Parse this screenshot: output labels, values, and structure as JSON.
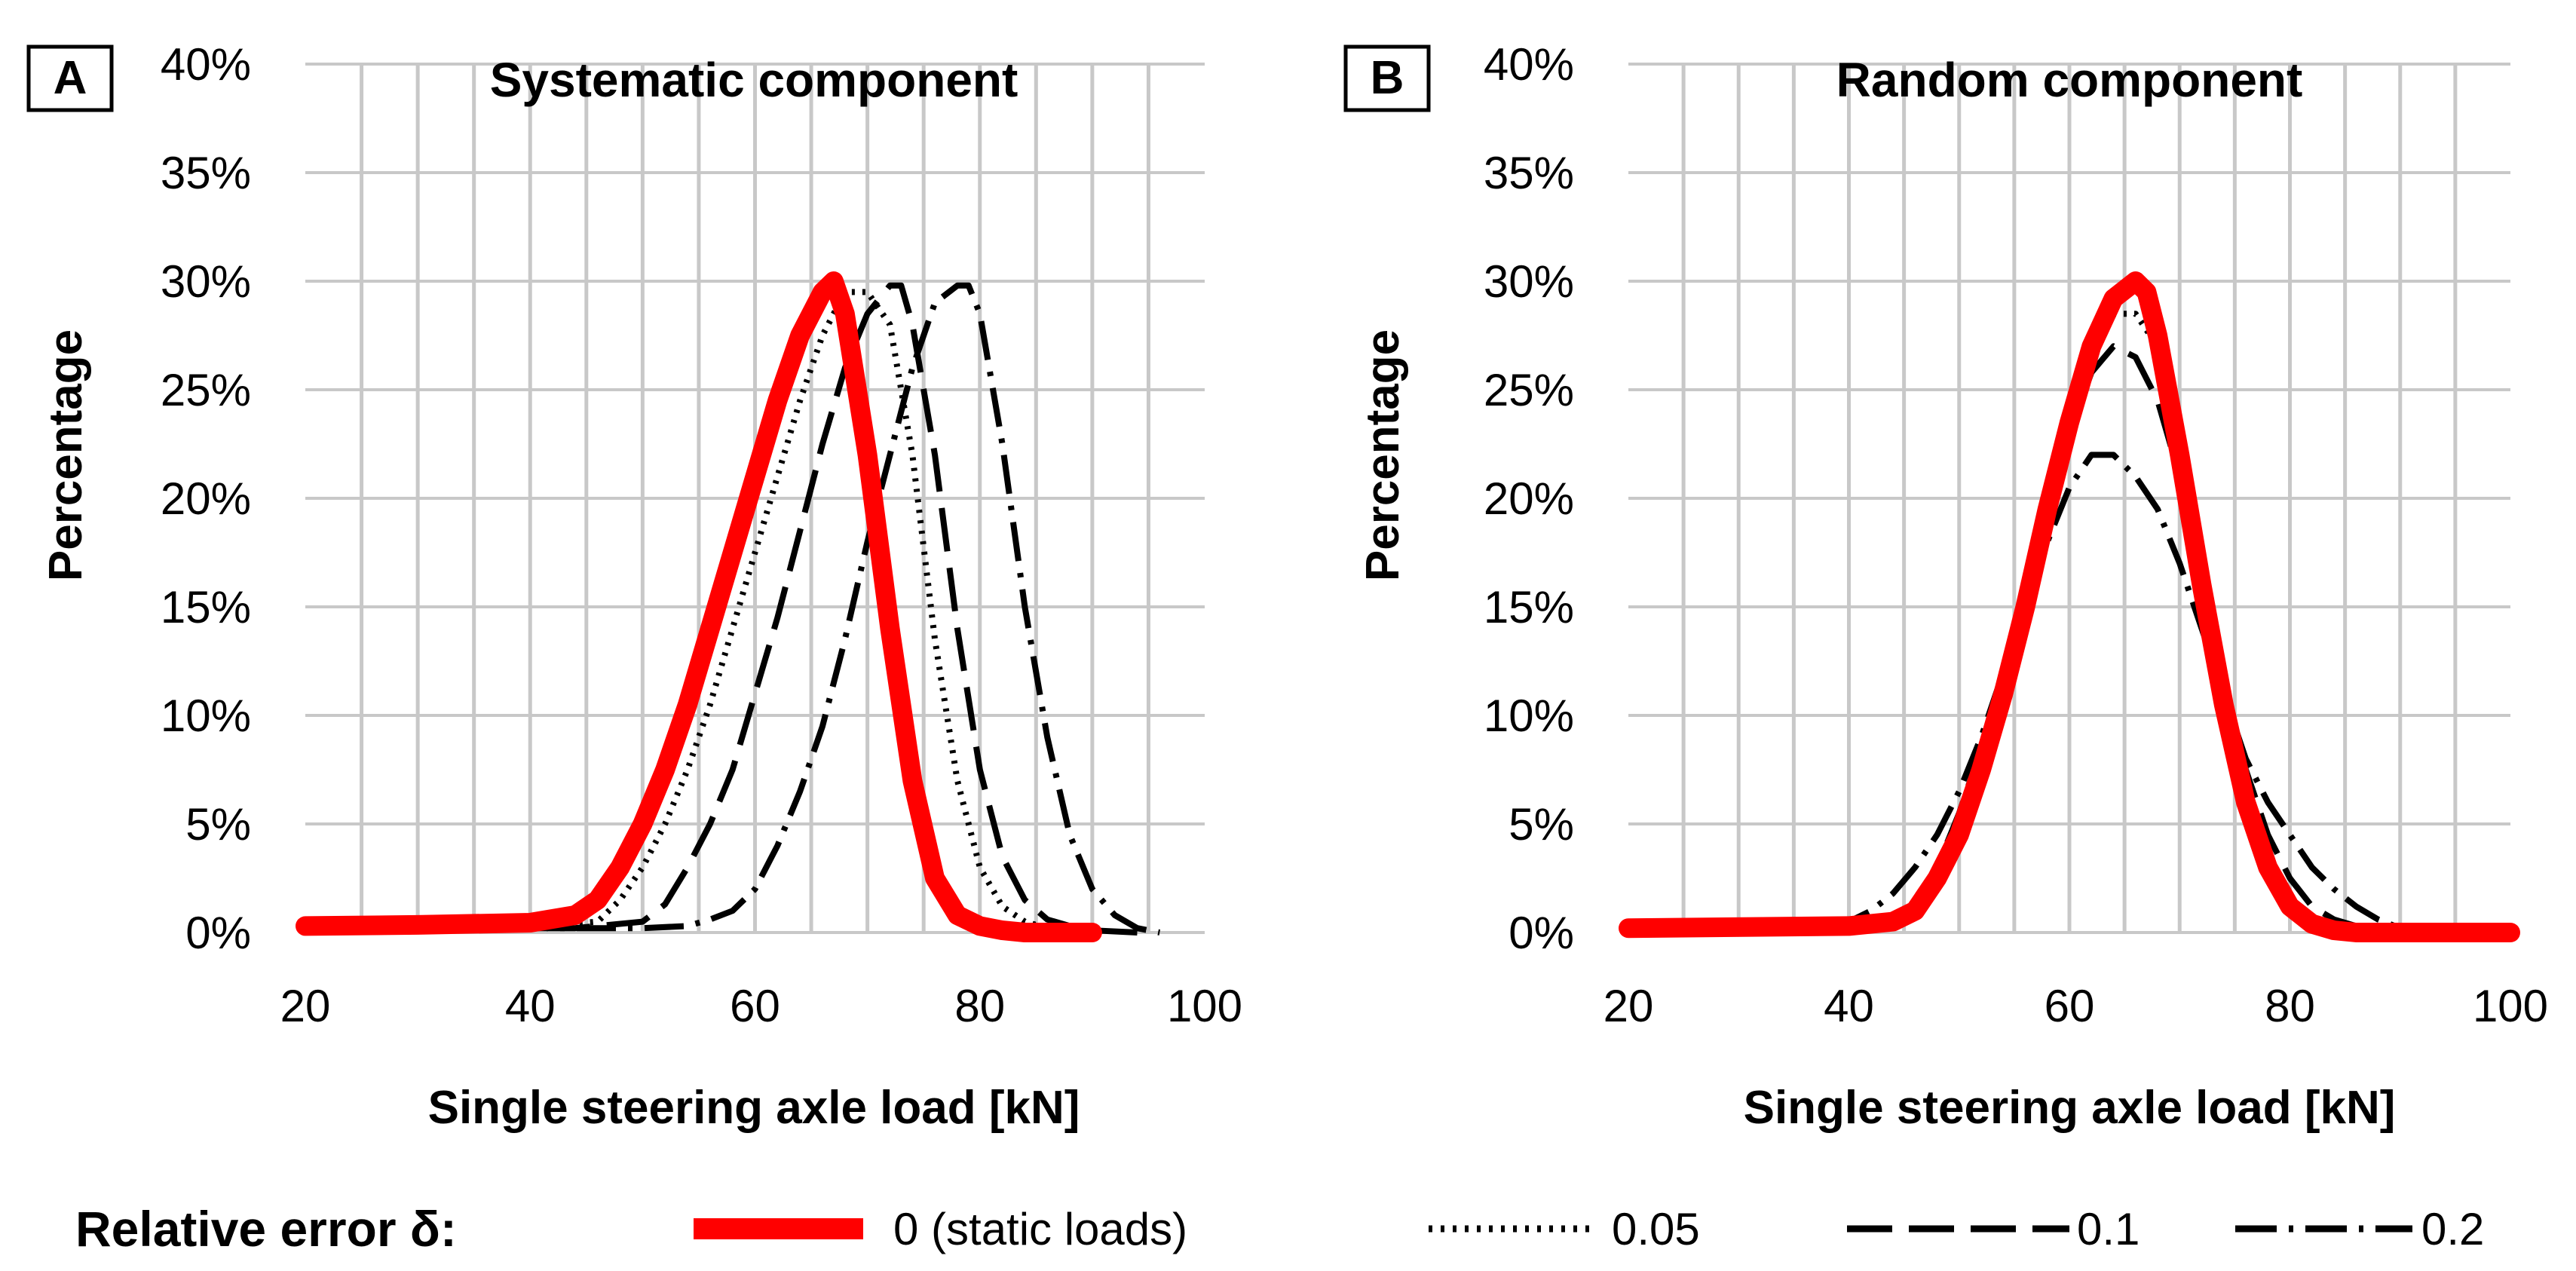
{
  "chart_data": [
    {
      "type": "line",
      "panel_label": "A",
      "title": "Systematic component",
      "xlabel": "Single steering axle load [kN]",
      "ylabel": "Percentage",
      "xlim": [
        20,
        100
      ],
      "ylim": [
        0,
        40
      ],
      "x_ticks": [
        20,
        40,
        60,
        80,
        100
      ],
      "x_tick_labels": [
        "20",
        "40",
        "60",
        "80",
        "100"
      ],
      "y_ticks": [
        0,
        5,
        10,
        15,
        20,
        25,
        30,
        35,
        40
      ],
      "y_tick_labels": [
        "0%",
        "5%",
        "10%",
        "15%",
        "20%",
        "25%",
        "30%",
        "35%",
        "40%"
      ],
      "grid": true,
      "series": [
        {
          "name": "0 (static loads)",
          "x": [
            20,
            30,
            40,
            44,
            46,
            48,
            50,
            52,
            54,
            56,
            58,
            60,
            62,
            64,
            66,
            67,
            68,
            70,
            72,
            74,
            76,
            78,
            80,
            82,
            84,
            86,
            88,
            90
          ],
          "y": [
            0.3,
            0.35,
            0.45,
            0.8,
            1.5,
            3,
            5,
            7.5,
            10.5,
            14,
            17.5,
            21,
            24.5,
            27.5,
            29.5,
            30,
            28.5,
            22,
            14,
            7,
            2.5,
            0.8,
            0.3,
            0.1,
            0,
            0,
            0,
            0
          ]
        },
        {
          "name": "0.05",
          "x": [
            20,
            40,
            46,
            48,
            50,
            52,
            54,
            56,
            58,
            60,
            62,
            64,
            66,
            68,
            70,
            72,
            74,
            76,
            78,
            80,
            82,
            84,
            86,
            90
          ],
          "y": [
            0.2,
            0.25,
            0.5,
            1.5,
            3,
            5,
            7.5,
            10.5,
            14,
            17.5,
            21,
            24.5,
            27.5,
            29.5,
            29.5,
            28,
            22,
            13.5,
            7,
            3,
            1.2,
            0.5,
            0.2,
            0
          ]
        },
        {
          "name": "0.1",
          "x": [
            20,
            44,
            50,
            52,
            54,
            56,
            58,
            60,
            62,
            64,
            66,
            68,
            70,
            72,
            73,
            74,
            76,
            78,
            80,
            82,
            84,
            86,
            88,
            90,
            94
          ],
          "y": [
            0.2,
            0.2,
            0.5,
            1.3,
            3,
            5,
            7.5,
            11,
            14.5,
            18.5,
            22.5,
            26,
            28.5,
            29.8,
            29.8,
            28,
            22,
            14,
            7.5,
            3.5,
            1.5,
            0.6,
            0.3,
            0.1,
            0
          ]
        },
        {
          "name": "0.2",
          "x": [
            20,
            50,
            54,
            56,
            58,
            60,
            62,
            64,
            66,
            68,
            70,
            72,
            74,
            76,
            78,
            79,
            80,
            82,
            84,
            86,
            88,
            90,
            92,
            94,
            96
          ],
          "y": [
            0.2,
            0.2,
            0.3,
            0.6,
            1,
            2,
            4,
            6.5,
            9.5,
            13.5,
            18,
            22,
            26,
            29,
            29.8,
            29.8,
            28.5,
            22.5,
            15,
            9,
            4.5,
            2,
            0.8,
            0.2,
            0
          ]
        }
      ]
    },
    {
      "type": "line",
      "panel_label": "B",
      "title": "Random component",
      "xlabel": "Single steering axle load [kN]",
      "ylabel": "Percentage",
      "xlim": [
        20,
        100
      ],
      "ylim": [
        0,
        40
      ],
      "x_ticks": [
        20,
        40,
        60,
        80,
        100
      ],
      "x_tick_labels": [
        "20",
        "40",
        "60",
        "80",
        "100"
      ],
      "y_ticks": [
        0,
        5,
        10,
        15,
        20,
        25,
        30,
        35,
        40
      ],
      "y_tick_labels": [
        "0%",
        "5%",
        "10%",
        "15%",
        "20%",
        "25%",
        "30%",
        "35%",
        "40%"
      ],
      "grid": true,
      "series": [
        {
          "name": "0 (static loads)",
          "x": [
            20,
            40,
            44,
            46,
            48,
            50,
            52,
            54,
            56,
            58,
            60,
            62,
            64,
            66,
            67,
            68,
            70,
            72,
            74,
            76,
            78,
            80,
            82,
            84,
            86,
            100
          ],
          "y": [
            0.2,
            0.3,
            0.5,
            1,
            2.5,
            4.5,
            7.5,
            11,
            15,
            19.5,
            23.5,
            27,
            29.2,
            30,
            29.5,
            27.5,
            22,
            16,
            10.5,
            6,
            3,
            1.2,
            0.4,
            0.1,
            0,
            0
          ]
        },
        {
          "name": "0.05",
          "x": [
            20,
            40,
            44,
            46,
            48,
            50,
            52,
            54,
            56,
            58,
            60,
            62,
            64,
            66,
            68,
            70,
            72,
            74,
            76,
            78,
            80,
            82,
            84,
            86,
            88,
            100
          ],
          "y": [
            0.2,
            0.3,
            0.6,
            1.2,
            2.8,
            5,
            8,
            11.5,
            15.5,
            19.5,
            23.5,
            26.5,
            28.5,
            28.5,
            27,
            22.5,
            16.5,
            11,
            6.5,
            3.5,
            1.5,
            0.5,
            0.2,
            0.1,
            0,
            0
          ]
        },
        {
          "name": "0.1",
          "x": [
            20,
            40,
            44,
            46,
            48,
            50,
            52,
            54,
            56,
            58,
            60,
            62,
            64,
            66,
            68,
            70,
            72,
            74,
            76,
            78,
            80,
            82,
            84,
            86,
            88,
            90,
            100
          ],
          "y": [
            0.2,
            0.3,
            0.6,
            1.3,
            3,
            5.5,
            8.5,
            12,
            15.5,
            19.5,
            23,
            25.8,
            27,
            26.5,
            24.5,
            21,
            16.5,
            11.5,
            7.5,
            4.5,
            2.5,
            1.2,
            0.6,
            0.3,
            0.1,
            0,
            0
          ]
        },
        {
          "name": "0.2",
          "x": [
            20,
            40,
            42,
            44,
            46,
            48,
            50,
            52,
            54,
            56,
            58,
            60,
            62,
            64,
            66,
            68,
            70,
            72,
            74,
            76,
            78,
            80,
            82,
            84,
            86,
            88,
            90,
            92,
            100
          ],
          "y": [
            0.2,
            0.5,
            1,
            1.8,
            3,
            4.5,
            6.5,
            9,
            12,
            15,
            18,
            20.5,
            22,
            22,
            21,
            19.5,
            17,
            14,
            11,
            8,
            6,
            4.5,
            3,
            2,
            1.2,
            0.6,
            0.2,
            0,
            0
          ]
        }
      ]
    }
  ],
  "legend": {
    "title": "Relative error δ:",
    "items": [
      "0 (static loads)",
      "0.05",
      "0.1",
      "0.2"
    ]
  },
  "colors": {
    "static": "#ff0000",
    "errors": "#000000",
    "grid": "#c8c8c8"
  }
}
